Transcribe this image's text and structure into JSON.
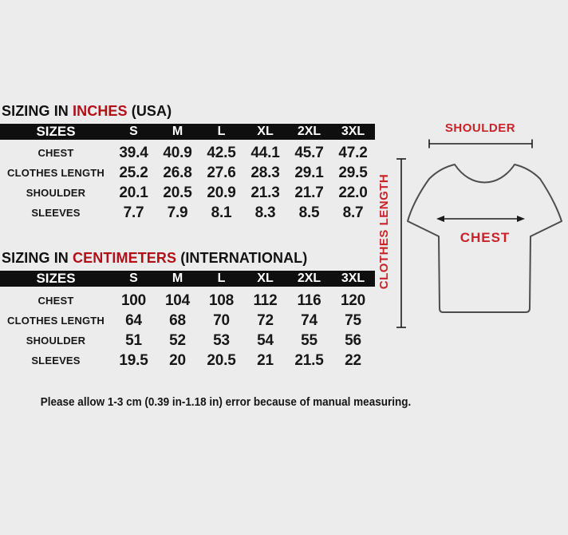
{
  "colors": {
    "background": "#ececec",
    "header_bg": "#0f0f0f",
    "header_text": "#ffffff",
    "text": "#161616",
    "title_red": "#b30f19",
    "diagram_red": "#c9232a",
    "outline": "#4d4d4d"
  },
  "tables": [
    {
      "title": {
        "prefix": "SIZING IN ",
        "highlight": "INCHES",
        "suffix": " (USA)"
      },
      "header": [
        "SIZES",
        "S",
        "M",
        "L",
        "XL",
        "2XL",
        "3XL"
      ],
      "rows": [
        {
          "label": "CHEST",
          "values": [
            "39.4",
            "40.9",
            "42.5",
            "44.1",
            "45.7",
            "47.2"
          ]
        },
        {
          "label": "CLOTHES LENGTH",
          "values": [
            "25.2",
            "26.8",
            "27.6",
            "28.3",
            "29.1",
            "29.5"
          ]
        },
        {
          "label": "SHOULDER",
          "values": [
            "20.1",
            "20.5",
            "20.9",
            "21.3",
            "21.7",
            "22.0"
          ]
        },
        {
          "label": "SLEEVES",
          "values": [
            "7.7",
            "7.9",
            "8.1",
            "8.3",
            "8.5",
            "8.7"
          ]
        }
      ]
    },
    {
      "title": {
        "prefix": "SIZING IN ",
        "highlight": "CENTIMETERS",
        "suffix": " (INTERNATIONAL)"
      },
      "header": [
        "SIZES",
        "S",
        "M",
        "L",
        "XL",
        "2XL",
        "3XL"
      ],
      "rows": [
        {
          "label": "CHEST",
          "values": [
            "100",
            "104",
            "108",
            "112",
            "116",
            "120"
          ]
        },
        {
          "label": "CLOTHES LENGTH",
          "values": [
            "64",
            "68",
            "70",
            "72",
            "74",
            "75"
          ]
        },
        {
          "label": "SHOULDER",
          "values": [
            "51",
            "52",
            "53",
            "54",
            "55",
            "56"
          ]
        },
        {
          "label": "SLEEVES",
          "values": [
            "19.5",
            "20",
            "20.5",
            "21",
            "21.5",
            "22"
          ]
        }
      ]
    }
  ],
  "note": "Please allow 1-3 cm (0.39 in-1.18 in) error because of manual measuring.",
  "diagram": {
    "shoulder_label": "SHOULDER",
    "chest_label": "CHEST",
    "clothes_length_label": "CLOTHES LENGTH"
  }
}
